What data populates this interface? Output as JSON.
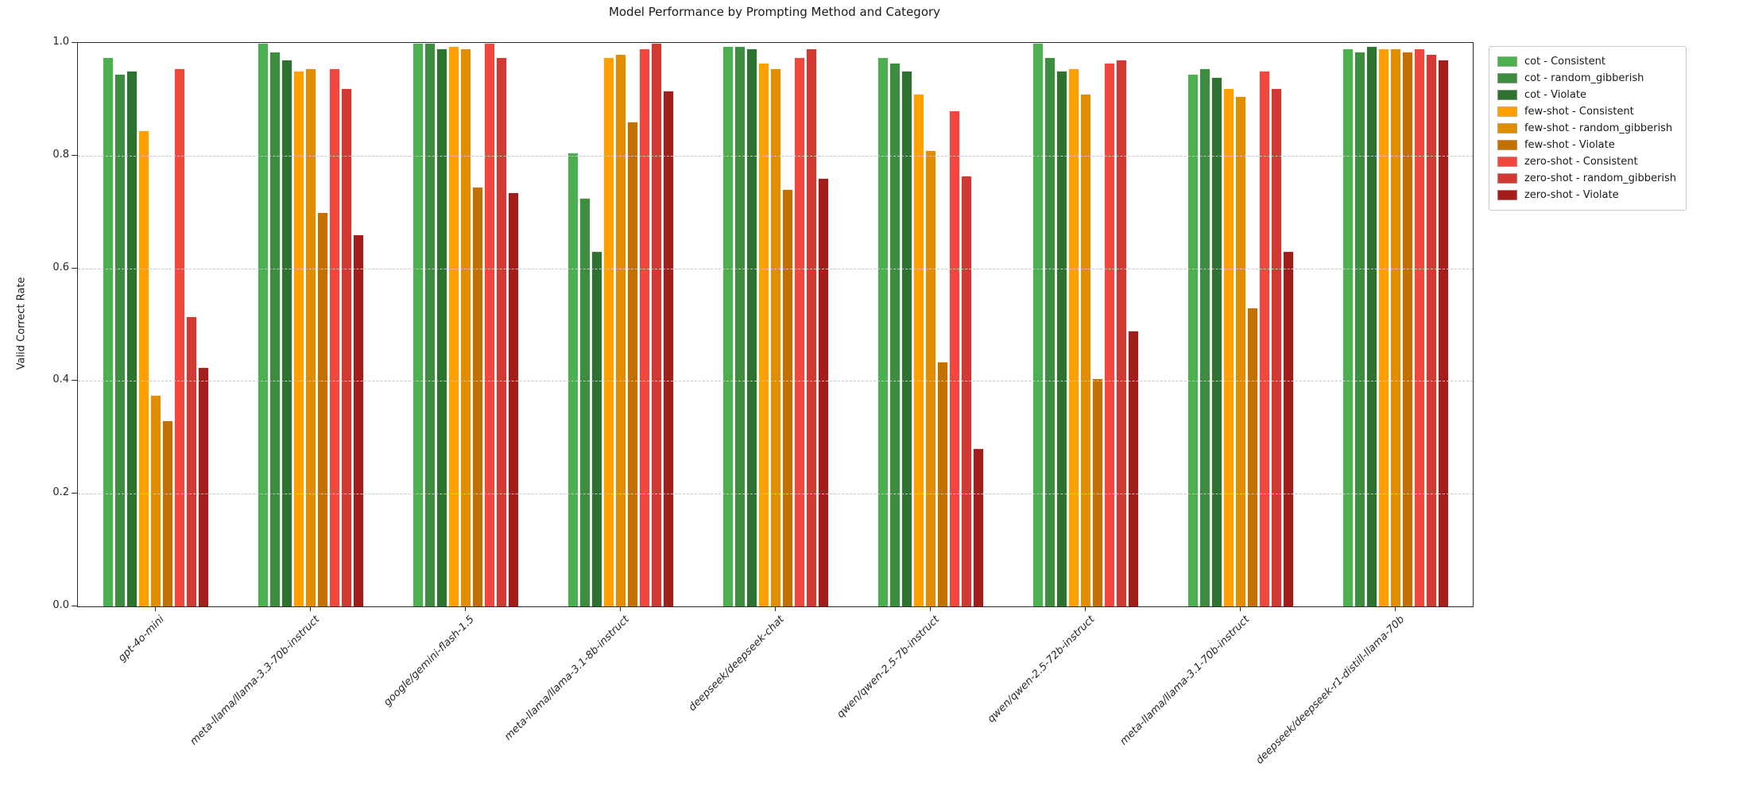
{
  "title": "Model Performance by Prompting Method and Category",
  "chart_data": {
    "type": "bar",
    "title": "Model Performance by Prompting Method and Category",
    "xlabel": "",
    "ylabel": "Valid Correct Rate",
    "ylim": [
      0.0,
      1.0
    ],
    "yticks": [
      0.0,
      0.2,
      0.4,
      0.6,
      0.8,
      1.0
    ],
    "grid": "horizontal dashed gridlines drawn over bars",
    "legend_position": "outside upper right",
    "categories": [
      "gpt-4o-mini",
      "meta-llama/llama-3.3-70b-instruct",
      "google/gemini-flash-1.5",
      "meta-llama/llama-3.1-8b-instruct",
      "deepseek/deepseek-chat",
      "qwen/qwen-2.5-7b-instruct",
      "qwen/qwen-2.5-72b-instruct",
      "meta-llama/llama-3.1-70b-instruct",
      "deepseek/deepseek-r1-distill-llama-70b"
    ],
    "series": [
      {
        "name": "cot - Consistent",
        "color": "#4caf50",
        "values": [
          0.975,
          1.0,
          1.0,
          0.805,
          0.995,
          0.975,
          1.0,
          0.945,
          0.99
        ]
      },
      {
        "name": "cot - random_gibberish",
        "color": "#3d8c40",
        "values": [
          0.945,
          0.985,
          1.0,
          0.725,
          0.995,
          0.965,
          0.975,
          0.955,
          0.985
        ]
      },
      {
        "name": "cot - Violate",
        "color": "#2d7230",
        "values": [
          0.95,
          0.97,
          0.99,
          0.63,
          0.99,
          0.95,
          0.95,
          0.94,
          0.995
        ]
      },
      {
        "name": "few-shot - Consistent",
        "color": "#ffa000",
        "values": [
          0.845,
          0.95,
          0.995,
          0.975,
          0.965,
          0.91,
          0.955,
          0.92,
          0.99
        ]
      },
      {
        "name": "few-shot - random_gibberish",
        "color": "#e08e00",
        "values": [
          0.375,
          0.955,
          0.99,
          0.98,
          0.955,
          0.81,
          0.91,
          0.905,
          0.99
        ]
      },
      {
        "name": "few-shot - Violate",
        "color": "#c27100",
        "values": [
          0.33,
          0.7,
          0.745,
          0.86,
          0.74,
          0.435,
          0.405,
          0.53,
          0.985
        ]
      },
      {
        "name": "zero-shot - Consistent",
        "color": "#f2473f",
        "values": [
          0.955,
          0.955,
          1.0,
          0.99,
          0.975,
          0.88,
          0.965,
          0.95,
          0.99
        ]
      },
      {
        "name": "zero-shot - random_gibberish",
        "color": "#d03a32",
        "values": [
          0.515,
          0.92,
          0.975,
          1.0,
          0.99,
          0.765,
          0.97,
          0.92,
          0.98
        ]
      },
      {
        "name": "zero-shot - Violate",
        "color": "#a31d1a",
        "values": [
          0.425,
          0.66,
          0.735,
          0.915,
          0.76,
          0.28,
          0.49,
          0.63,
          0.97
        ]
      }
    ]
  }
}
